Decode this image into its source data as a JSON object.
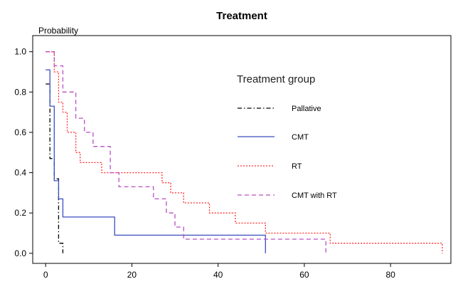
{
  "chart_data": {
    "type": "line",
    "title": "Treatment",
    "ylabel": "Probability",
    "xlabel": "",
    "xlim": [
      -3,
      94
    ],
    "ylim": [
      -0.05,
      1.08
    ],
    "xticks": [
      0,
      20,
      40,
      60,
      80
    ],
    "yticks": [
      0.0,
      0.2,
      0.4,
      0.6,
      0.8,
      1.0
    ],
    "ytick_labels": [
      "0.0",
      "0.2",
      "0.4",
      "0.6",
      "0.8",
      "1.0"
    ],
    "grid": false,
    "legend": {
      "title": "Treatment group",
      "position": "top-right"
    },
    "series": [
      {
        "name": "Pallative",
        "color": "#000000",
        "dash": "dashdot",
        "x": [
          0,
          1,
          1,
          2,
          2,
          3,
          3,
          4,
          4
        ],
        "y": [
          0.84,
          0.84,
          0.47,
          0.47,
          0.37,
          0.37,
          0.05,
          0.05,
          0.0
        ]
      },
      {
        "name": "CMT",
        "color": "#3a4fbf",
        "dash": "solid",
        "x": [
          0,
          1,
          1,
          2,
          2,
          3,
          3,
          4,
          4,
          16,
          16,
          51,
          51
        ],
        "y": [
          0.91,
          0.91,
          0.73,
          0.73,
          0.36,
          0.36,
          0.27,
          0.27,
          0.18,
          0.18,
          0.09,
          0.09,
          0.0
        ]
      },
      {
        "name": "RT",
        "color": "#ff2a2a",
        "dash": "dotted",
        "x": [
          0,
          2,
          2,
          3,
          3,
          4,
          4,
          5,
          5,
          7,
          7,
          8,
          8,
          13,
          13,
          27,
          27,
          29,
          29,
          32,
          32,
          38,
          38,
          44,
          44,
          51,
          51,
          66,
          66,
          92,
          92
        ],
        "y": [
          1.0,
          1.0,
          0.9,
          0.9,
          0.75,
          0.75,
          0.7,
          0.7,
          0.6,
          0.6,
          0.5,
          0.5,
          0.45,
          0.45,
          0.4,
          0.4,
          0.35,
          0.35,
          0.3,
          0.3,
          0.25,
          0.25,
          0.2,
          0.2,
          0.15,
          0.15,
          0.1,
          0.1,
          0.05,
          0.05,
          0.0
        ]
      },
      {
        "name": "CMT with RT",
        "color": "#b84fc4",
        "dash": "dashed",
        "x": [
          0,
          2,
          2,
          4,
          4,
          7,
          7,
          9,
          9,
          11,
          11,
          15,
          15,
          17,
          17,
          25,
          25,
          28,
          28,
          30,
          30,
          32,
          32,
          65,
          65
        ],
        "y": [
          1.0,
          1.0,
          0.93,
          0.93,
          0.8,
          0.8,
          0.67,
          0.67,
          0.6,
          0.6,
          0.53,
          0.53,
          0.4,
          0.4,
          0.33,
          0.33,
          0.27,
          0.27,
          0.2,
          0.2,
          0.13,
          0.13,
          0.07,
          0.07,
          0.0
        ]
      }
    ]
  }
}
